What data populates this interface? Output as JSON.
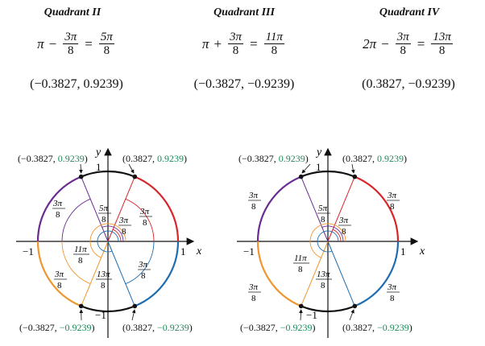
{
  "quadrants": [
    {
      "title": "Quadrant II",
      "lead": "π",
      "op": "−",
      "frac": {
        "num": "3π",
        "den": "8"
      },
      "eq": "=",
      "res": {
        "num": "5π",
        "den": "8"
      },
      "point": "(−0.3827, 0.9239)"
    },
    {
      "title": "Quadrant III",
      "lead": "π",
      "op": "+",
      "frac": {
        "num": "3π",
        "den": "8"
      },
      "eq": "=",
      "res": {
        "num": "11π",
        "den": "8"
      },
      "point": "(−0.3827, −0.9239)"
    },
    {
      "title": "Quadrant IV",
      "lead": "2π",
      "op": "−",
      "frac": {
        "num": "3π",
        "den": "8"
      },
      "eq": "=",
      "res": {
        "num": "13π",
        "den": "8"
      },
      "point": "(0.3827, −0.9239)"
    }
  ],
  "diagram": {
    "axis_x": "x",
    "axis_y": "y",
    "tick_pos": "1",
    "tick_neg": "−1",
    "pts": {
      "q1": {
        "a": "(0.3827, ",
        "b": "0.9239",
        ")": ")"
      },
      "q2": {
        "a": "(−0.3827, ",
        "b": "0.9239",
        ")": ")"
      },
      "q3": {
        "a": "(−0.3827, ",
        "b": "−0.9239",
        ")": ")"
      },
      "q4": {
        "a": "(0.3827, ",
        "b": "−0.9239",
        ")": ")"
      }
    },
    "angles": {
      "a5": "5π",
      "a11": "11π",
      "a13": "13π",
      "a3": "3π",
      "den": "8"
    }
  },
  "colors": {
    "purple": "#6a2c91",
    "red": "#d6262b",
    "orange": "#f0962e",
    "blue": "#1f6db0",
    "green": "#1f8a5a",
    "black": "#111111"
  }
}
